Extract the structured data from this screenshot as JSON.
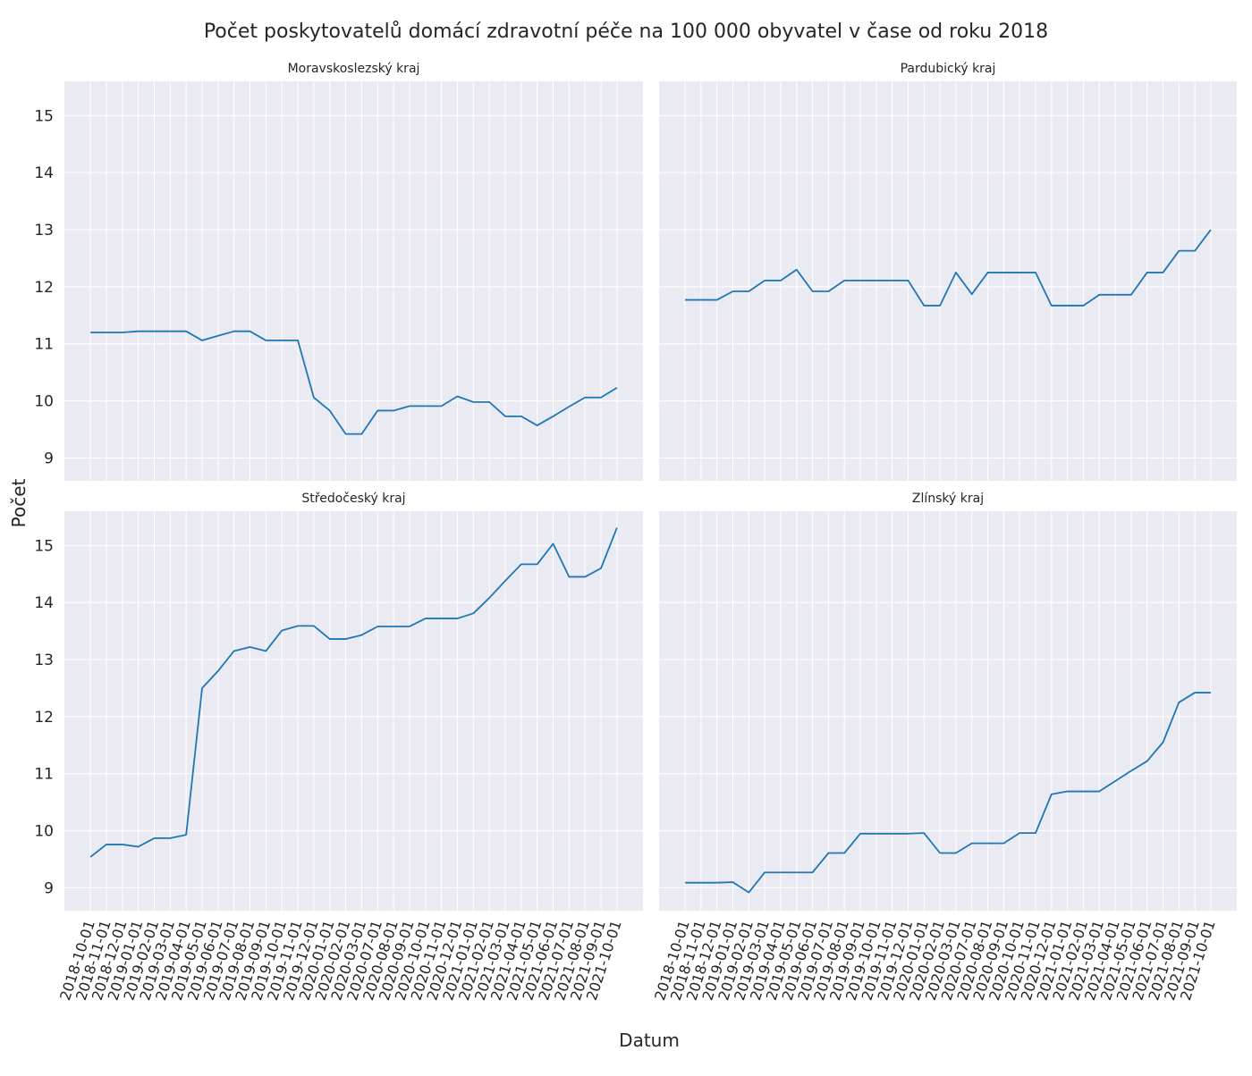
{
  "figure": {
    "title": "Počet poskytovatelů domácí zdravotní péče na 100 000 obyvatel v čase od roku 2018",
    "xlabel": "Datum",
    "ylabel": "Počet"
  },
  "colors": {
    "panel_bg": "#eaeaf2",
    "grid": "#ffffff",
    "line": "#1f77b4",
    "text": "#262626"
  },
  "chart_data": [
    {
      "type": "line",
      "title": "Moravskoslezský kraj",
      "x": [
        "2018-10-01",
        "2018-11-01",
        "2018-12-01",
        "2019-01-01",
        "2019-02-01",
        "2019-03-01",
        "2019-04-01",
        "2019-05-01",
        "2019-06-01",
        "2019-07-01",
        "2019-08-01",
        "2019-09-01",
        "2019-10-01",
        "2019-11-01",
        "2019-12-01",
        "2020-01-01",
        "2020-02-01",
        "2020-03-01",
        "2020-07-01",
        "2020-08-01",
        "2020-09-01",
        "2020-10-01",
        "2020-11-01",
        "2020-12-01",
        "2021-01-01",
        "2021-02-01",
        "2021-03-01",
        "2021-04-01",
        "2021-05-01",
        "2021-06-01",
        "2021-07-01",
        "2021-08-01",
        "2021-09-01",
        "2021-10-01"
      ],
      "values": [
        11.2,
        11.2,
        11.2,
        11.22,
        11.22,
        11.22,
        11.22,
        11.06,
        11.14,
        11.22,
        11.22,
        11.06,
        11.06,
        11.06,
        10.06,
        9.83,
        9.42,
        9.42,
        9.83,
        9.83,
        9.91,
        9.91,
        9.91,
        10.08,
        9.98,
        9.98,
        9.73,
        9.73,
        9.57,
        9.73,
        9.9,
        10.06,
        10.06,
        10.23
      ],
      "ylim": [
        8.6,
        15.6
      ],
      "yticks": [
        9,
        10,
        11,
        12,
        13,
        14,
        15
      ]
    },
    {
      "type": "line",
      "title": "Pardubický kraj",
      "x": [
        "2018-10-01",
        "2018-11-01",
        "2018-12-01",
        "2019-01-01",
        "2019-02-01",
        "2019-03-01",
        "2019-04-01",
        "2019-05-01",
        "2019-06-01",
        "2019-07-01",
        "2019-08-01",
        "2019-09-01",
        "2019-10-01",
        "2019-11-01",
        "2019-12-01",
        "2020-01-01",
        "2020-02-01",
        "2020-03-01",
        "2020-07-01",
        "2020-08-01",
        "2020-09-01",
        "2020-10-01",
        "2020-11-01",
        "2020-12-01",
        "2021-01-01",
        "2021-02-01",
        "2021-03-01",
        "2021-04-01",
        "2021-05-01",
        "2021-06-01",
        "2021-07-01",
        "2021-08-01",
        "2021-09-01",
        "2021-10-01"
      ],
      "values": [
        11.77,
        11.77,
        11.77,
        11.92,
        11.92,
        12.11,
        12.11,
        12.3,
        11.92,
        11.92,
        12.11,
        12.11,
        12.11,
        12.11,
        12.11,
        11.67,
        11.67,
        12.25,
        11.87,
        12.25,
        12.25,
        12.25,
        12.25,
        11.67,
        11.67,
        11.67,
        11.86,
        11.86,
        11.86,
        12.25,
        12.25,
        12.63,
        12.63,
        13.0
      ],
      "ylim": [
        8.6,
        15.6
      ],
      "yticks": [
        9,
        10,
        11,
        12,
        13,
        14,
        15
      ]
    },
    {
      "type": "line",
      "title": "Středočeský kraj",
      "x": [
        "2018-10-01",
        "2018-11-01",
        "2018-12-01",
        "2019-01-01",
        "2019-02-01",
        "2019-03-01",
        "2019-04-01",
        "2019-05-01",
        "2019-06-01",
        "2019-07-01",
        "2019-08-01",
        "2019-09-01",
        "2019-10-01",
        "2019-11-01",
        "2019-12-01",
        "2020-01-01",
        "2020-02-01",
        "2020-03-01",
        "2020-07-01",
        "2020-08-01",
        "2020-09-01",
        "2020-10-01",
        "2020-11-01",
        "2020-12-01",
        "2021-01-01",
        "2021-02-01",
        "2021-03-01",
        "2021-04-01",
        "2021-05-01",
        "2021-06-01",
        "2021-07-01",
        "2021-08-01",
        "2021-09-01",
        "2021-10-01"
      ],
      "values": [
        9.54,
        9.76,
        9.76,
        9.72,
        9.87,
        9.87,
        9.93,
        12.5,
        12.8,
        13.15,
        13.22,
        13.15,
        13.51,
        13.59,
        13.59,
        13.36,
        13.36,
        13.43,
        13.58,
        13.58,
        13.58,
        13.72,
        13.72,
        13.72,
        13.81,
        14.08,
        14.38,
        14.67,
        14.67,
        15.03,
        14.45,
        14.45,
        14.6,
        15.31
      ],
      "ylim": [
        8.6,
        15.6
      ],
      "yticks": [
        9,
        10,
        11,
        12,
        13,
        14,
        15
      ]
    },
    {
      "type": "line",
      "title": "Zlínský kraj",
      "x": [
        "2018-10-01",
        "2018-11-01",
        "2018-12-01",
        "2019-01-01",
        "2019-02-01",
        "2019-03-01",
        "2019-04-01",
        "2019-05-01",
        "2019-06-01",
        "2019-07-01",
        "2019-08-01",
        "2019-09-01",
        "2019-10-01",
        "2019-11-01",
        "2019-12-01",
        "2020-01-01",
        "2020-02-01",
        "2020-03-01",
        "2020-07-01",
        "2020-08-01",
        "2020-09-01",
        "2020-10-01",
        "2020-11-01",
        "2020-12-01",
        "2021-01-01",
        "2021-02-01",
        "2021-03-01",
        "2021-04-01",
        "2021-05-01",
        "2021-06-01",
        "2021-07-01",
        "2021-08-01",
        "2021-09-01",
        "2021-10-01"
      ],
      "values": [
        9.09,
        9.09,
        9.09,
        9.1,
        8.92,
        9.27,
        9.27,
        9.27,
        9.27,
        9.61,
        9.61,
        9.95,
        9.95,
        9.95,
        9.95,
        9.96,
        9.61,
        9.61,
        9.78,
        9.78,
        9.78,
        9.96,
        9.96,
        10.64,
        10.69,
        10.69,
        10.69,
        10.87,
        11.05,
        11.22,
        11.55,
        12.25,
        12.42,
        12.42
      ],
      "ylim": [
        8.6,
        15.6
      ],
      "yticks": [
        9,
        10,
        11,
        12,
        13,
        14,
        15
      ]
    }
  ]
}
